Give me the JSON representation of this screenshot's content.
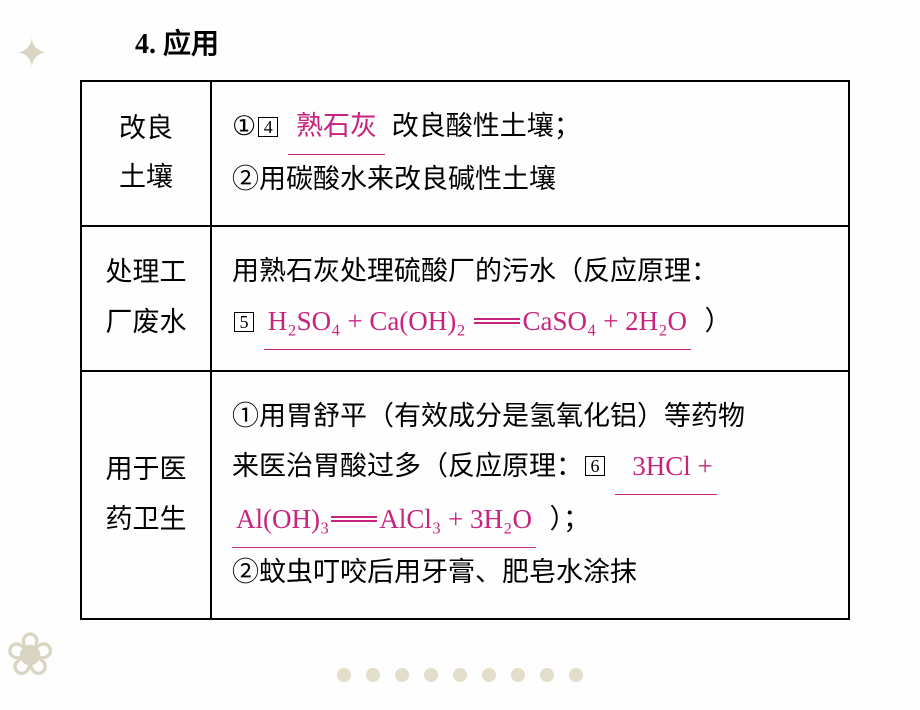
{
  "section_title": "4. 应用",
  "table": {
    "rows": [
      {
        "label_line1": "改良",
        "label_line2": "土壤",
        "circled1": "①",
        "boxed_num1": "4",
        "blank1": "熟石灰",
        "text_after_blank1": " 改良酸性土壤；",
        "circled2": "②",
        "text2": "用碳酸水来改良碱性土壤"
      },
      {
        "label_line1": "处理工",
        "label_line2": "厂废水",
        "text_before": "用熟石灰处理硫酸厂的污水（反应原理：",
        "boxed_num": "5",
        "equation_lhs": "H₂SO₄ + Ca(OH)₂",
        "equation_rhs": "CaSO₄ + 2H₂O",
        "text_after": "）"
      },
      {
        "label_line1": "用于医",
        "label_line2": "药卫生",
        "circled1": "①",
        "text1a": "用胃舒平（有效成分是氢氧化铝）等药物",
        "text1b": "来医治胃酸过多（反应原理：",
        "boxed_num": "6",
        "equation_part1": "3HCl +",
        "equation_part2_lhs": "Al(OH)₃",
        "equation_part2_rhs": "AlCl₃ + 3H₂O",
        "text1c": "）；",
        "circled2": "②",
        "text2": "蚊虫叮咬后用牙膏、肥皂水涂抹"
      }
    ]
  },
  "colors": {
    "text": "#000000",
    "accent": "#c8237e",
    "decoration": "#8a7a3a",
    "background": "#fefefe"
  }
}
